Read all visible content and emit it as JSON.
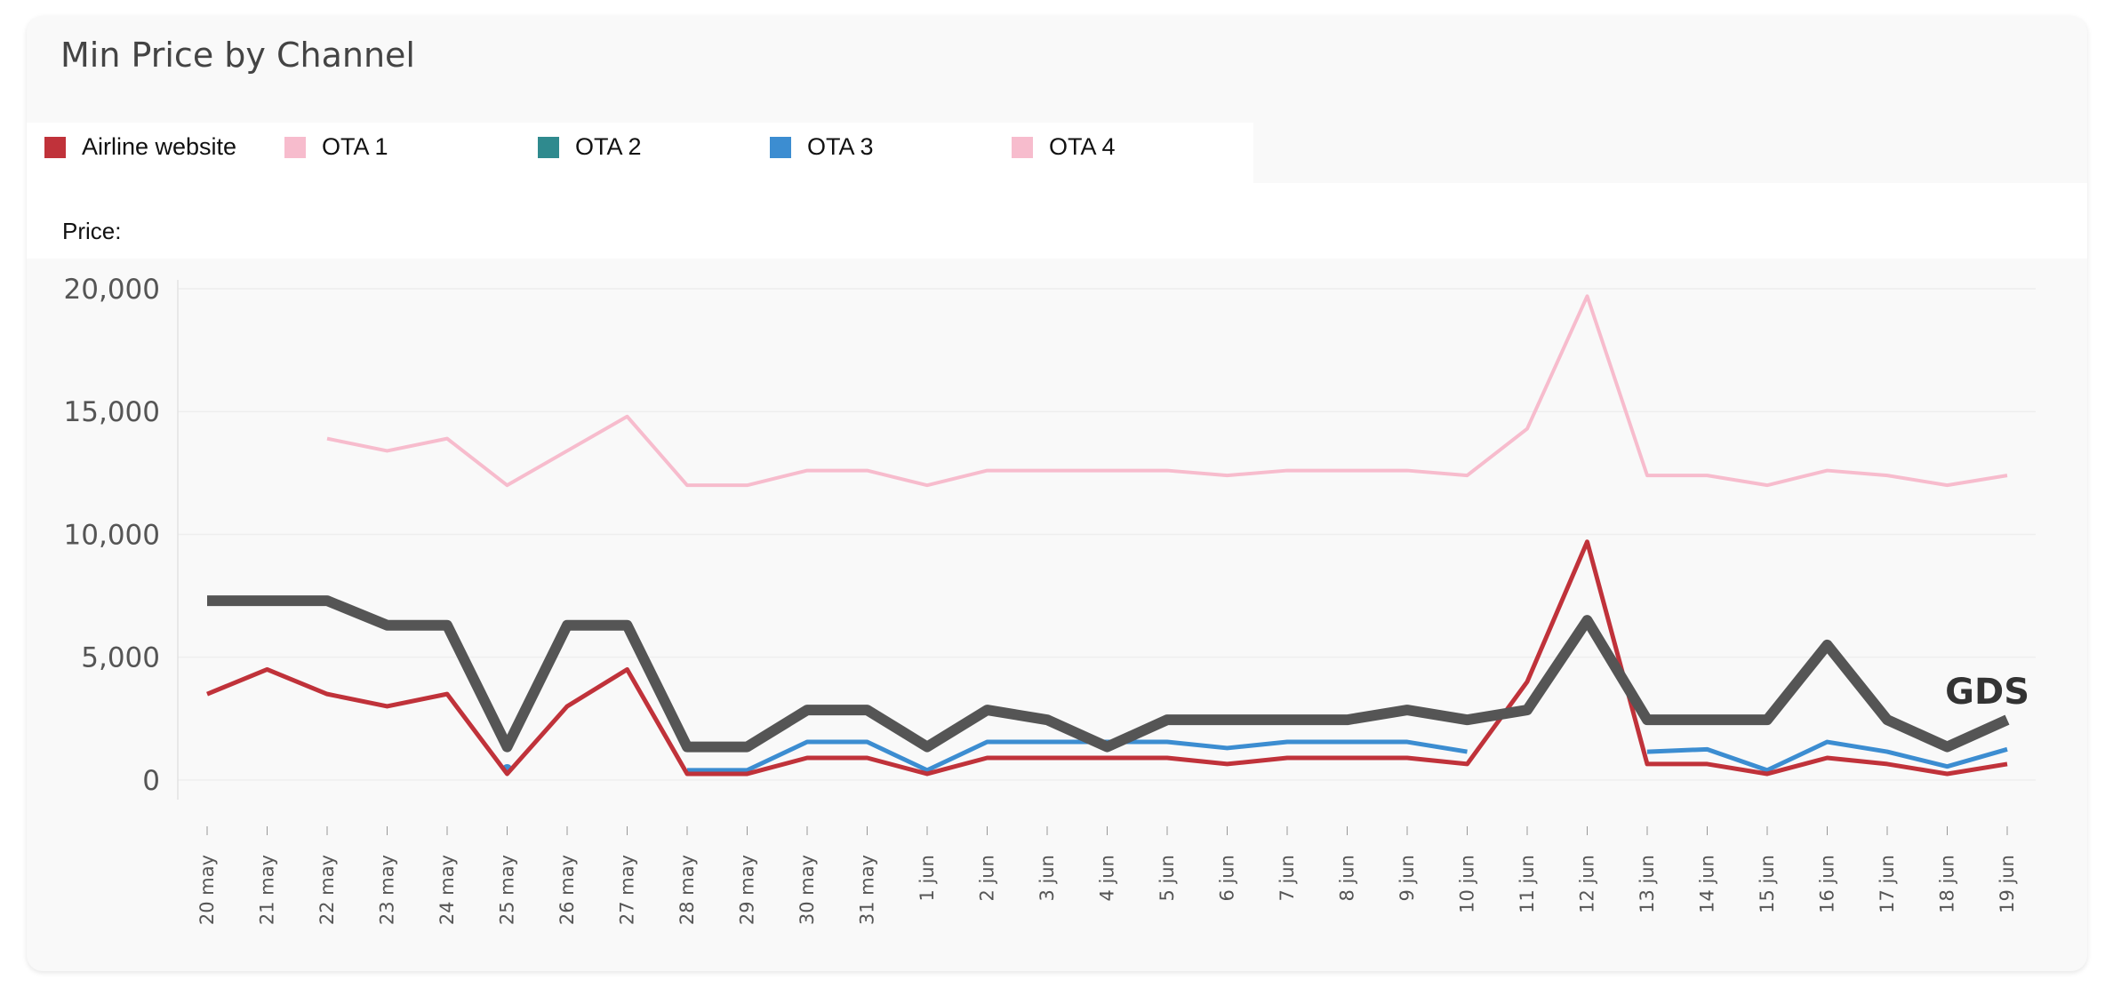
{
  "card": {
    "title": "Min Price by Channel"
  },
  "legend": [
    {
      "label": "Airline website",
      "color": "#c0323a"
    },
    {
      "label": "OTA 1",
      "color": "#f7bccd"
    },
    {
      "label": "OTA 2",
      "color": "#2f8a8e"
    },
    {
      "label": "OTA 3",
      "color": "#3c8dd1"
    },
    {
      "label": "OTA 4",
      "color": "#f7bccd"
    }
  ],
  "price_label": "Price:",
  "chart_data": {
    "type": "line",
    "ylabel": "Price:",
    "ylim": [
      -800,
      20000
    ],
    "yticks": [
      {
        "value": 0,
        "label": "0"
      },
      {
        "value": 5000,
        "label": "5,000"
      },
      {
        "value": 10000,
        "label": "10,000"
      },
      {
        "value": 15000,
        "label": "15,000"
      },
      {
        "value": 20000,
        "label": "20,000"
      }
    ],
    "grid": true,
    "legend_position": "top-left",
    "categories": [
      "20 may",
      "21 may",
      "22 may",
      "23 may",
      "24 may",
      "25 may",
      "26 may",
      "27 may",
      "28 may",
      "29 may",
      "30 may",
      "31 may",
      "1 jun",
      "2 jun",
      "3 jun",
      "4 jun",
      "5 jun",
      "6 jun",
      "7 jun",
      "8 jun",
      "9 jun",
      "10 jun",
      "11 jun",
      "12 jun",
      "13 jun",
      "14 jun",
      "15 jun",
      "16 jun",
      "17 jun",
      "18 jun",
      "19 jun"
    ],
    "series": [
      {
        "name": "OTA 4",
        "color": "#f7bccd",
        "width": 4,
        "values": [
          null,
          null,
          13900,
          13400,
          13900,
          12000,
          13400,
          14800,
          12000,
          12000,
          12600,
          12600,
          12000,
          12600,
          12600,
          12600,
          12600,
          12400,
          12600,
          12600,
          12600,
          12400,
          14300,
          19700,
          12400,
          12400,
          12000,
          12600,
          12400,
          12000,
          12400
        ]
      },
      {
        "name": "OTA 3",
        "color": "#3c8dd1",
        "width": 5,
        "values": [
          null,
          null,
          null,
          null,
          null,
          450,
          null,
          null,
          400,
          400,
          1550,
          1550,
          400,
          1550,
          1550,
          1550,
          1550,
          1300,
          1550,
          1550,
          1550,
          1150,
          null,
          null,
          1150,
          1250,
          400,
          1550,
          1150,
          550,
          1250
        ]
      },
      {
        "name": "Airline website",
        "color": "#c0323a",
        "width": 5,
        "values": [
          3500,
          4500,
          3500,
          3000,
          3500,
          250,
          3000,
          4500,
          250,
          250,
          900,
          900,
          250,
          900,
          900,
          900,
          900,
          650,
          900,
          900,
          900,
          650,
          4000,
          9700,
          650,
          650,
          250,
          900,
          650,
          250,
          650
        ]
      },
      {
        "name": "GDS",
        "color": "#555555",
        "width": 12,
        "values": [
          7300,
          7300,
          7300,
          6300,
          6300,
          1350,
          6300,
          6300,
          1350,
          1350,
          2850,
          2850,
          1350,
          2850,
          2450,
          1350,
          2450,
          2450,
          2450,
          2450,
          2850,
          2450,
          2850,
          6500,
          2450,
          2450,
          2450,
          5500,
          2450,
          1350,
          2450
        ]
      }
    ],
    "annotations": [
      {
        "text": "GDS",
        "series": "GDS",
        "at": "19 jun"
      }
    ]
  }
}
